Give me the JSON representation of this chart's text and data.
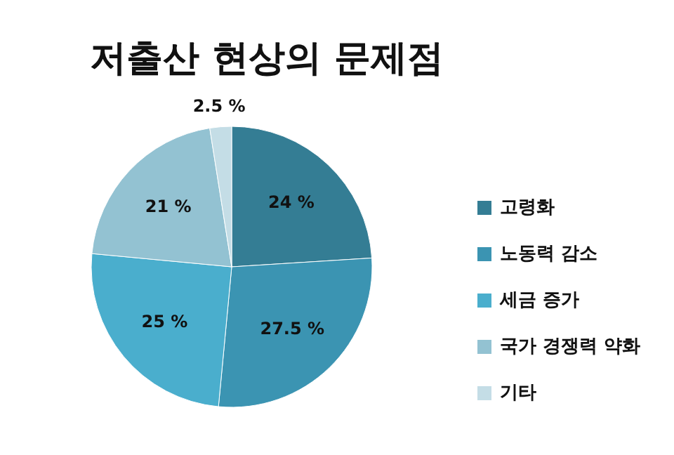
{
  "chart_data": {
    "type": "pie",
    "title": "저출산 현상의 문제점",
    "categories": [
      "고령화",
      "노동력 감소",
      "세금 증가",
      "국가 경쟁력 약화",
      "기타"
    ],
    "values": [
      24,
      27.5,
      25,
      21,
      2.5
    ],
    "colors": [
      "#347d94",
      "#3b94b2",
      "#4aaecd",
      "#93c2d2",
      "#c4dde6"
    ],
    "value_labels": [
      "24 %",
      "27.5 %",
      "25 %",
      "21 %",
      "2.5 %"
    ],
    "legend": "right"
  }
}
